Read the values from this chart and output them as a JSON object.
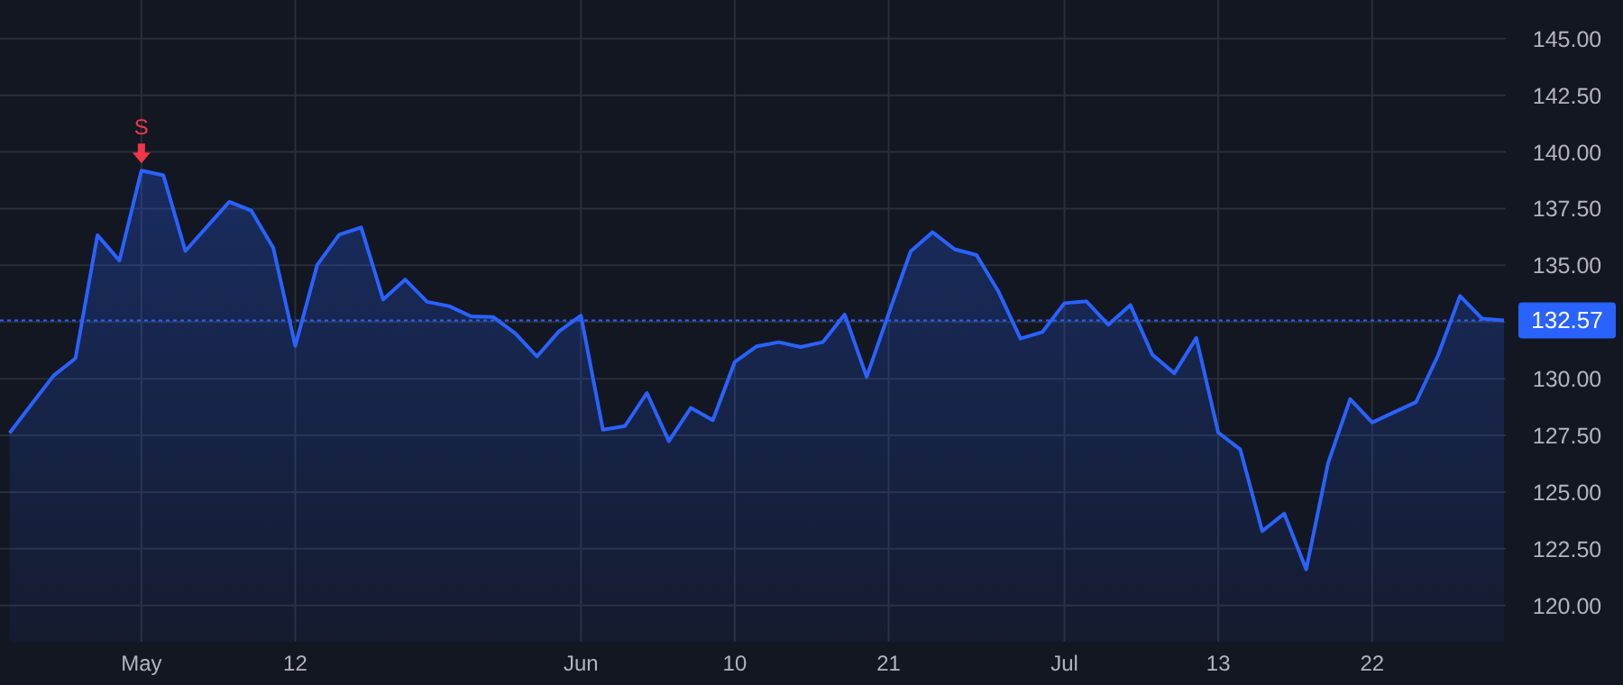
{
  "chart_data": {
    "type": "area",
    "categories": [
      null,
      null,
      null,
      null,
      null,
      null,
      "May",
      null,
      null,
      null,
      null,
      null,
      null,
      "12",
      null,
      null,
      null,
      null,
      null,
      null,
      null,
      null,
      null,
      null,
      null,
      null,
      "Jun",
      null,
      null,
      null,
      null,
      null,
      null,
      "10",
      null,
      null,
      null,
      null,
      null,
      null,
      "21",
      null,
      null,
      null,
      null,
      null,
      null,
      null,
      "Jul",
      null,
      null,
      null,
      null,
      null,
      null,
      "13",
      null,
      null,
      null,
      null,
      null,
      null,
      "22",
      null,
      null,
      null,
      null,
      null,
      null
    ],
    "series": [
      {
        "color": "#2962ff",
        "values": [
          127.6,
          128.87,
          130.13,
          130.9,
          136.33,
          135.21,
          139.18,
          138.97,
          135.63,
          136.72,
          137.8,
          137.41,
          135.77,
          131.45,
          135.02,
          136.35,
          136.67,
          133.49,
          134.37,
          133.39,
          133.2,
          132.75,
          132.72,
          132.01,
          130.98,
          132.09,
          132.78,
          127.75,
          127.91,
          129.37,
          127.25,
          128.71,
          128.17,
          130.74,
          131.43,
          131.61,
          131.4,
          131.61,
          132.83,
          130.08,
          132.86,
          135.61,
          136.46,
          135.71,
          135.45,
          133.84,
          131.77,
          132.06,
          133.33,
          133.41,
          132.38,
          133.25,
          131.06,
          130.24,
          131.8,
          127.62,
          126.88,
          123.28,
          124.05,
          121.59,
          126.29,
          129.1,
          128.07,
          128.52,
          128.97,
          131.03,
          133.65,
          132.65,
          132.57
        ]
      }
    ],
    "ylim": [
      118.4,
      146.7
    ],
    "yticks": [
      {
        "value": 120,
        "label": "120.00"
      },
      {
        "value": 122.5,
        "label": "122.50"
      },
      {
        "value": 125,
        "label": "125.00"
      },
      {
        "value": 127.5,
        "label": "127.50"
      },
      {
        "value": 130,
        "label": "130.00"
      },
      {
        "value": 132.5,
        "label": null
      },
      {
        "value": 135,
        "label": "135.00"
      },
      {
        "value": 137.5,
        "label": "137.50"
      },
      {
        "value": 140,
        "label": "140.00"
      },
      {
        "value": 142.5,
        "label": "142.50"
      },
      {
        "value": 145,
        "label": "145.00"
      }
    ],
    "grid": true,
    "annotations": [
      {
        "text": "S",
        "x": "May",
        "y": 139.18
      }
    ],
    "ref_lines": [
      {
        "axis": "y",
        "value": 132.57,
        "label": "132.57",
        "color": "#2962ff",
        "line_style": "dotted"
      }
    ]
  }
}
